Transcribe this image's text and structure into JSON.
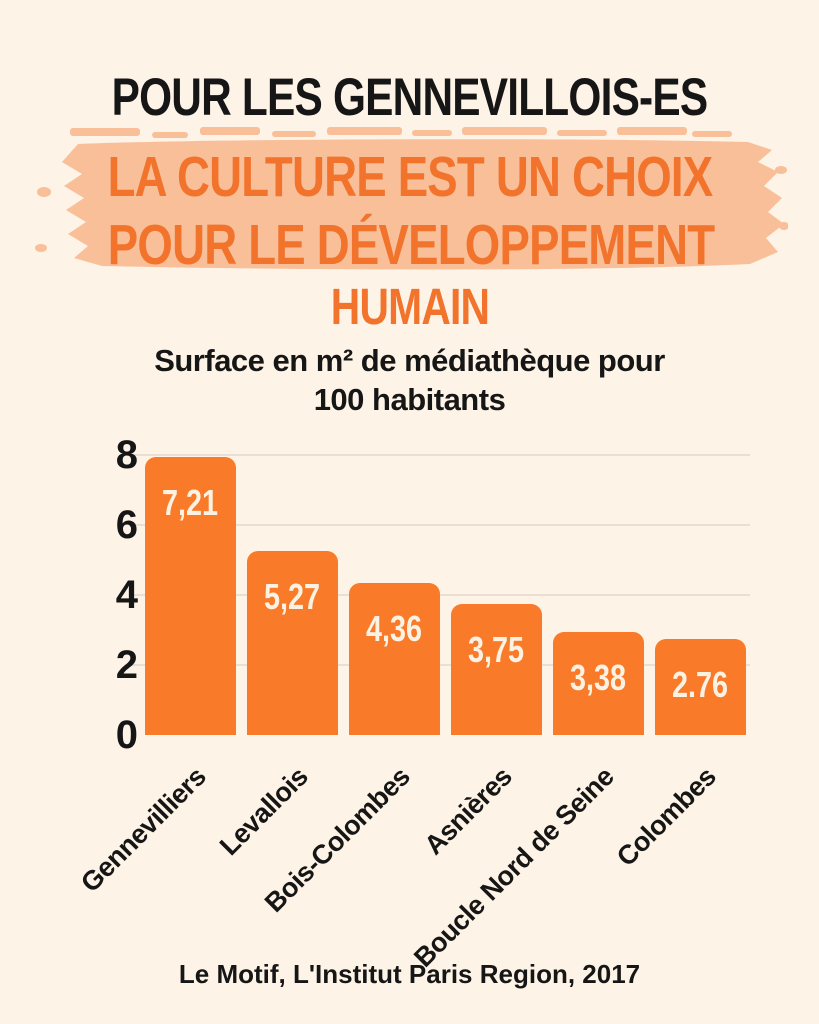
{
  "page": {
    "title": "POUR LES GENNEVILLOIS-ES",
    "highlight_line1": "LA CULTURE EST UN CHOIX",
    "highlight_line2": "POUR LE DÉVELOPPEMENT",
    "highlight_line3": "HUMAIN",
    "source": "Le Motif, L'Institut Paris Region, 2017"
  },
  "colors": {
    "background": "#FDF3E6",
    "text_black": "#161616",
    "heading_orange": "#F2732C",
    "brush_peach": "#F9BF99",
    "bar_orange": "#F97A28",
    "bar_value_cream": "#FBF2E3",
    "gridline": "#E9DFD2"
  },
  "chart_data": {
    "type": "bar",
    "title": "Surface en m² de médiathèque pour\n100 habitants",
    "categories": [
      "Gennevilliers",
      "Levallois",
      "Bois-Colombes",
      "Asnières",
      "Boucle Nord de Seine",
      "Colombes"
    ],
    "values": [
      7.21,
      5.27,
      4.36,
      3.75,
      3.38,
      2.76
    ],
    "value_labels": [
      "7,21",
      "5,27",
      "4,36",
      "3,75",
      "3,38",
      "2.76"
    ],
    "display_heights": [
      7.94,
      5.26,
      4.34,
      3.74,
      2.94,
      2.74
    ],
    "xlabel": "",
    "ylabel": "",
    "ylim": [
      0,
      8
    ],
    "yticks": [
      0,
      2,
      4,
      6,
      8
    ],
    "grid": true,
    "legend": false,
    "bar_label_position": "inside-top",
    "x_tick_rotation": -45,
    "source": "Le Motif, L'Institut Paris Region, 2017"
  }
}
